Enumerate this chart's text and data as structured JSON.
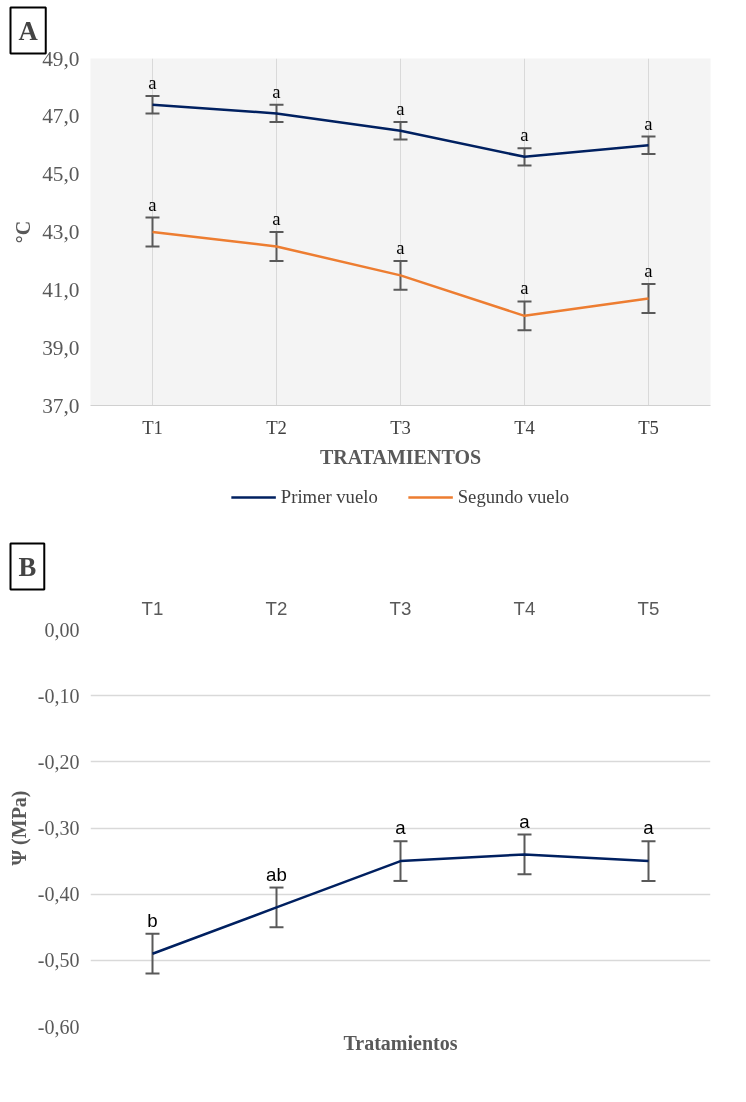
{
  "chart_data": [
    {
      "type": "line",
      "ylabel": "°C",
      "xlabel": "TRATAMIENTOS",
      "categories": [
        "T1",
        "T2",
        "T3",
        "T4",
        "T5"
      ],
      "ylim": [
        37,
        49
      ],
      "yticks": [
        {
          "value": 37,
          "label": "37,0"
        },
        {
          "value": 39,
          "label": "39,0"
        },
        {
          "value": 41,
          "label": "41,0"
        },
        {
          "value": 43,
          "label": "43,0"
        },
        {
          "value": 45,
          "label": "45,0"
        },
        {
          "value": 47,
          "label": "47,0"
        },
        {
          "value": 49,
          "label": "49,0"
        }
      ],
      "grid": "x",
      "legend": "bottom",
      "marker": "none",
      "series": [
        {
          "name": "Primer vuelo",
          "color": "#002060",
          "values": [
            47.4,
            47.1,
            46.5,
            45.6,
            46.0
          ],
          "errors": [
            0.3,
            0.3,
            0.3,
            0.3,
            0.3
          ]
        },
        {
          "name": "Segundo vuelo",
          "color": "#ed7d31",
          "values": [
            43.0,
            42.5,
            41.5,
            40.1,
            40.7
          ],
          "errors": [
            0.5,
            0.5,
            0.5,
            0.5,
            0.5
          ]
        }
      ],
      "annotations": [
        "A",
        {
          "text": "a",
          "x": "T1",
          "y": 47.7
        },
        {
          "text": "a",
          "x": "T2",
          "y": 47.4
        },
        {
          "text": "a",
          "x": "T3",
          "y": 46.8
        },
        {
          "text": "a",
          "x": "T4",
          "y": 45.9
        },
        {
          "text": "a",
          "x": "T5",
          "y": 46.3
        },
        {
          "text": "a",
          "x": "T1",
          "y": 43.5
        },
        {
          "text": "a",
          "x": "T2",
          "y": 43.0
        },
        {
          "text": "a",
          "x": "T3",
          "y": 42.0
        },
        {
          "text": "a",
          "x": "T4",
          "y": 40.6
        },
        {
          "text": "a",
          "x": "T5",
          "y": 41.2
        }
      ]
    },
    {
      "type": "line",
      "ylabel": "Ψ (MPa)",
      "xlabel": "Tratamientos",
      "categories": [
        "T1",
        "T2",
        "T3",
        "T4",
        "T5"
      ],
      "ylim": [
        -0.6,
        0
      ],
      "yticks": [
        {
          "value": -0.6,
          "label": "-0,60"
        },
        {
          "value": -0.5,
          "label": "-0,50"
        },
        {
          "value": -0.4,
          "label": "-0,40"
        },
        {
          "value": -0.3,
          "label": "-0,30"
        },
        {
          "value": -0.2,
          "label": "-0,20"
        },
        {
          "value": -0.1,
          "label": "-0,10"
        },
        {
          "value": 0,
          "label": "0,00"
        }
      ],
      "grid": "y",
      "legend": false,
      "marker": "none",
      "series": [
        {
          "color": "#002060",
          "values": [
            -0.49,
            -0.42,
            -0.35,
            -0.34,
            -0.35
          ],
          "errors": [
            0.03,
            0.03,
            0.03,
            0.03,
            0.03
          ]
        }
      ],
      "annotations": [
        "B",
        {
          "text": "b",
          "x": "T1",
          "y": -0.46
        },
        {
          "text": "ab",
          "x": "T2",
          "y": -0.39
        },
        {
          "text": "a",
          "x": "T3",
          "y": -0.32
        },
        {
          "text": "a",
          "x": "T4",
          "y": -0.31
        },
        {
          "text": "a",
          "x": "T5",
          "y": -0.32
        }
      ]
    }
  ]
}
